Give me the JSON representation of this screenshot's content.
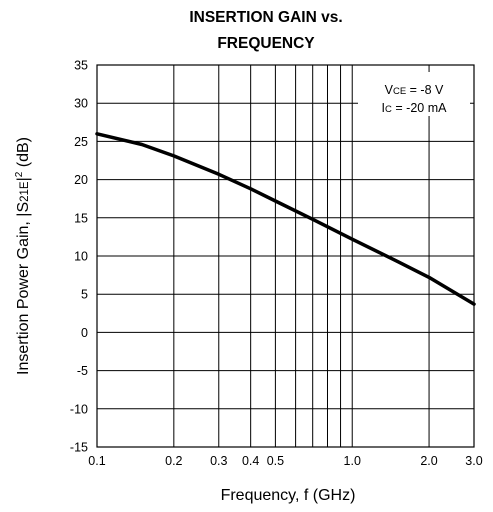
{
  "chart_data": {
    "type": "line",
    "title_line1": "INSERTION GAIN  vs.",
    "title_line2": "FREQUENCY",
    "xlabel": "Frequency, f (GHz)",
    "ylabel_parts": [
      "Insertion Power Gain, |S",
      "21E",
      "|",
      "2",
      " (dB)"
    ],
    "x_scale": "log",
    "xlim": [
      0.1,
      3.0
    ],
    "ylim": [
      -15,
      35
    ],
    "x_ticks": [
      0.1,
      0.2,
      0.3,
      0.4,
      0.5,
      1.0,
      2.0,
      3.0
    ],
    "x_tick_labels": [
      "0.1",
      "0.2",
      "0.3",
      "0.4",
      "0.5",
      "1.0",
      "2.0",
      "3.0"
    ],
    "x_grid": [
      0.1,
      0.2,
      0.3,
      0.4,
      0.5,
      0.6,
      0.7,
      0.8,
      0.9,
      1.0,
      2.0,
      3.0
    ],
    "y_ticks": [
      35,
      30,
      25,
      20,
      15,
      10,
      5,
      0,
      -5,
      -10,
      -15
    ],
    "y_tick_labels": [
      "35",
      "30",
      "25",
      "20",
      "15",
      "10",
      "5",
      "0",
      "-5",
      "-10",
      "-15"
    ],
    "grid": true,
    "annotation": {
      "line1_prefix": "V",
      "line1_sub": "CE",
      "line1_suffix": " = -8 V",
      "line2_prefix": "I",
      "line2_sub": "C",
      "line2_suffix": " = -20 mA",
      "placement": "top-right"
    },
    "series": [
      {
        "x": [
          0.1,
          0.15,
          0.2,
          0.3,
          0.4,
          0.5,
          0.7,
          1.0,
          1.5,
          2.0,
          3.0
        ],
        "y": [
          26.0,
          24.6,
          23.1,
          20.7,
          18.8,
          17.2,
          14.8,
          12.2,
          9.3,
          7.2,
          3.7
        ]
      }
    ]
  }
}
